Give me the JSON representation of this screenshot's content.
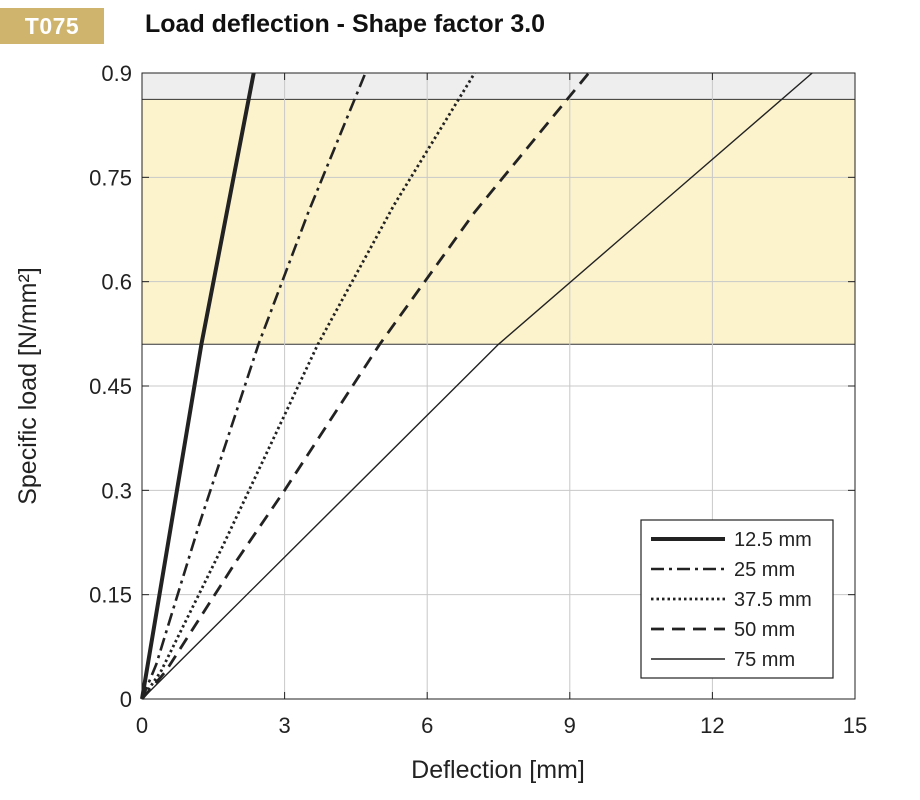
{
  "header": {
    "badge": "T075",
    "title": "Load deflection - Shape factor 3.0"
  },
  "colors": {
    "badge_bg": "#cfb46e",
    "band_yellow": "#fcf3cc",
    "band_grey": "#eeeeee",
    "line": "#222222"
  },
  "chart_data": {
    "type": "line",
    "title": "Load deflection - Shape factor 3.0",
    "xlabel": "Deflection  [mm]",
    "ylabel": "Specific load [N/mm²]",
    "xlim": [
      0,
      15
    ],
    "ylim": [
      0,
      0.9
    ],
    "xticks": [
      0,
      3,
      6,
      9,
      12,
      15
    ],
    "xtick_labels": [
      "0",
      "3",
      "6",
      "9",
      "12",
      "15"
    ],
    "yticks": [
      0,
      0.15,
      0.3,
      0.45,
      0.6,
      0.75,
      0.9
    ],
    "ytick_labels": [
      "0",
      "0.15",
      "0.3",
      "0.45",
      "0.6",
      "0.75",
      "0.9"
    ],
    "grid": true,
    "legend_position": "bottom-right",
    "bands": [
      {
        "y0": 0.51,
        "y1": 0.862,
        "color": "#fcf3cc"
      },
      {
        "y0": 0.862,
        "y1": 0.9,
        "color": "#eeeeee"
      }
    ],
    "series": [
      {
        "name": "12.5 mm",
        "style": "thick-solid",
        "x": [
          0,
          1.25,
          2.35
        ],
        "y": [
          0,
          0.51,
          0.9
        ]
      },
      {
        "name": "25 mm",
        "style": "dash-dot",
        "x": [
          0,
          0.3,
          1.2,
          2.45,
          3.5,
          4.7
        ],
        "y": [
          0,
          0.05,
          0.25,
          0.51,
          0.7,
          0.9
        ]
      },
      {
        "name": "37.5 mm",
        "style": "dotted",
        "x": [
          0,
          0.4,
          1.7,
          3.7,
          5.3,
          7.0
        ],
        "y": [
          0,
          0.04,
          0.22,
          0.51,
          0.71,
          0.9
        ]
      },
      {
        "name": "50 mm",
        "style": "dashed",
        "x": [
          0,
          0.5,
          2.0,
          3.0,
          5.0,
          7.0,
          9.4
        ],
        "y": [
          0,
          0.04,
          0.2,
          0.3,
          0.51,
          0.7,
          0.9
        ]
      },
      {
        "name": "75 mm",
        "style": "thin-solid",
        "x": [
          0,
          7.5,
          14.1
        ],
        "y": [
          0,
          0.51,
          0.9
        ]
      }
    ]
  }
}
